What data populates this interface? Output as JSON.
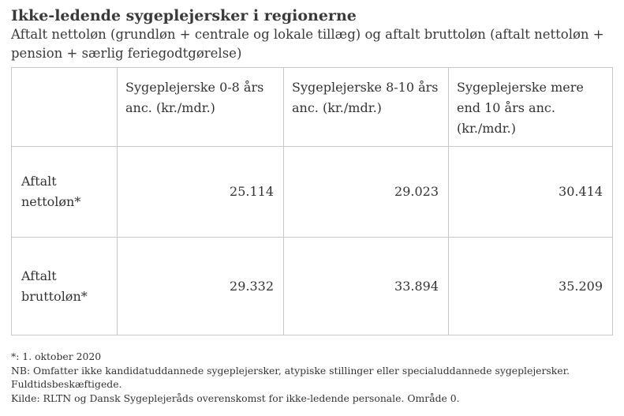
{
  "title": "Ikke-ledende sygeplejersker i regionerne",
  "subtitle": "Aftalt nettoløn (grundløn + centrale og lokale tillæg) og aftalt bruttoløn (aftalt nettoløn + pension + særlig feriegodtgørelse)",
  "table": {
    "columns": [
      "",
      "Sygeplejerske 0-8 års anc. (kr./mdr.)",
      "Sygeplejerske 8-10 års anc. (kr./mdr.)",
      "Sygeplejerske mere end 10 års anc. (kr./mdr.)"
    ],
    "rows": [
      {
        "label": "Aftalt nettoløn*",
        "values": [
          "25.114",
          "29.023",
          "30.414"
        ]
      },
      {
        "label": "Aftalt bruttoløn*",
        "values": [
          "29.332",
          "33.894",
          "35.209"
        ]
      }
    ]
  },
  "notes": {
    "date_note": "*: 1. oktober 2020",
    "nb_note": "NB: Omfatter ikke kandidatuddannede sygeplejersker, atypiske stillinger eller specialuddannede sygeplejersker. Fuldtidsbeskæftigede.",
    "source": "Kilde: RLTN og Dansk Sygeplejeråds overenskomst for ikke-ledende personale. Område 0."
  }
}
